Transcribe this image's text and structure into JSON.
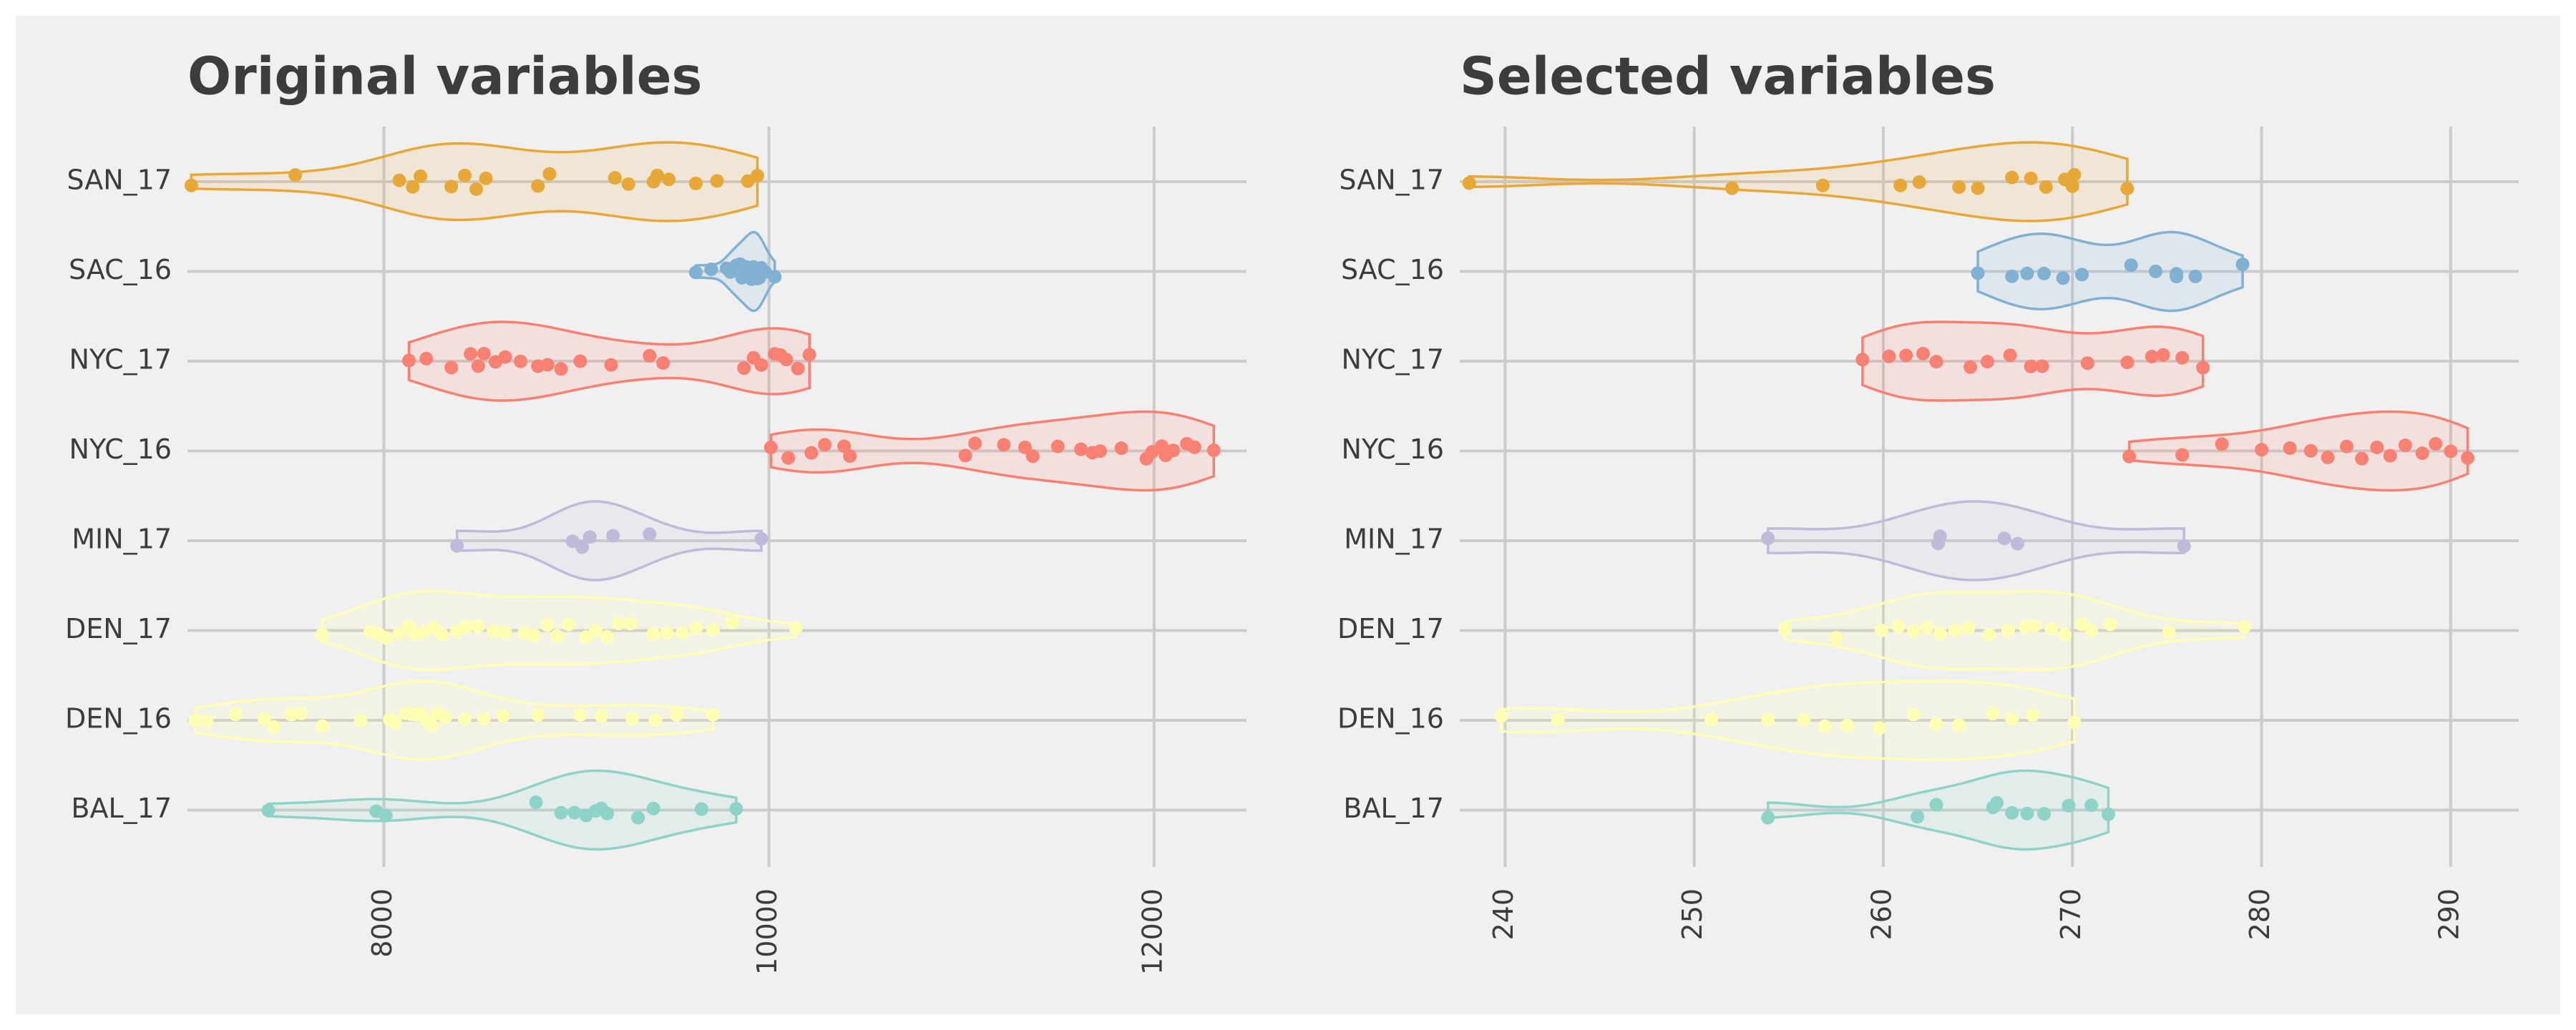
{
  "chart_data": [
    {
      "type": "violin",
      "title": "Original variables",
      "xlabel": "",
      "ylabel": "",
      "xlim": [
        6980,
        12480
      ],
      "xticks": [
        8000,
        10000,
        12000
      ],
      "grid": true,
      "categories": [
        "SAN_17",
        "SAC_16",
        "NYC_17",
        "NYC_16",
        "MIN_17",
        "DEN_17",
        "DEN_16",
        "BAL_17"
      ],
      "colors": [
        "#e8a838",
        "#80b1d3",
        "#fa8072",
        "#fa8072",
        "#bebada",
        "#ffffb3",
        "#ffffb3",
        "#8dd3c7"
      ],
      "series": [
        {
          "name": "SAN_17",
          "min": 7000,
          "max": 9940,
          "values": [
            7000,
            7540,
            8080,
            8150,
            8190,
            8350,
            8420,
            8480,
            8530,
            8800,
            8860,
            9200,
            9270,
            9400,
            9420,
            9480,
            9620,
            9730,
            9890,
            9940
          ]
        },
        {
          "name": "SAC_16",
          "min": 9620,
          "max": 10030,
          "values": [
            9620,
            9700,
            9780,
            9800,
            9830,
            9850,
            9860,
            9880,
            9900,
            9910,
            9920,
            9930,
            9940,
            9950,
            9960,
            9980,
            10030
          ]
        },
        {
          "name": "NYC_17",
          "min": 8130,
          "max": 10210,
          "values": [
            8130,
            8220,
            8350,
            8450,
            8490,
            8520,
            8580,
            8630,
            8710,
            8800,
            8850,
            8920,
            9020,
            9180,
            9380,
            9450,
            9870,
            9920,
            9960,
            10030,
            10060,
            10090,
            10150,
            10210
          ]
        },
        {
          "name": "NYC_16",
          "min": 10010,
          "max": 12310,
          "values": [
            10010,
            10100,
            10220,
            10290,
            10390,
            10420,
            11020,
            11070,
            11220,
            11330,
            11370,
            11500,
            11620,
            11680,
            11720,
            11830,
            11960,
            11990,
            12040,
            12060,
            12100,
            12170,
            12210,
            12310
          ]
        },
        {
          "name": "MIN_17",
          "min": 8380,
          "max": 9960,
          "values": [
            8380,
            8980,
            9030,
            9070,
            9190,
            9380,
            9960
          ]
        },
        {
          "name": "DEN_17",
          "min": 7680,
          "max": 10140,
          "values": [
            7680,
            7930,
            7970,
            8010,
            8080,
            8130,
            8160,
            8210,
            8260,
            8300,
            8380,
            8430,
            8490,
            8570,
            8630,
            8730,
            8780,
            8850,
            8900,
            8960,
            9050,
            9100,
            9160,
            9220,
            9280,
            9400,
            9470,
            9550,
            9620,
            9710,
            9810,
            10140
          ]
        },
        {
          "name": "DEN_16",
          "min": 7020,
          "max": 9710,
          "values": [
            7020,
            7080,
            7230,
            7380,
            7430,
            7520,
            7570,
            7680,
            7880,
            8030,
            8060,
            8110,
            8140,
            8170,
            8190,
            8220,
            8250,
            8280,
            8320,
            8420,
            8520,
            8620,
            8800,
            9020,
            9130,
            9290,
            9410,
            9520,
            9710
          ]
        },
        {
          "name": "BAL_17",
          "min": 7400,
          "max": 9830,
          "values": [
            7400,
            7960,
            8010,
            8790,
            8920,
            8990,
            9050,
            9100,
            9130,
            9160,
            9320,
            9400,
            9650,
            9830
          ]
        }
      ]
    },
    {
      "type": "violin",
      "title": "Selected variables",
      "xlabel": "",
      "ylabel": "",
      "xlim": [
        237.6,
        293.6
      ],
      "xticks": [
        240,
        250,
        260,
        270,
        280,
        290
      ],
      "grid": true,
      "categories": [
        "SAN_17",
        "SAC_16",
        "NYC_17",
        "NYC_16",
        "MIN_17",
        "DEN_17",
        "DEN_16",
        "BAL_17"
      ],
      "colors": [
        "#e8a838",
        "#80b1d3",
        "#fa8072",
        "#fa8072",
        "#bebada",
        "#ffffb3",
        "#ffffb3",
        "#8dd3c7"
      ],
      "series": [
        {
          "name": "SAN_17",
          "min": 238.1,
          "max": 272.9,
          "values": [
            238.1,
            252.0,
            256.8,
            260.9,
            261.9,
            264.0,
            265.0,
            266.8,
            267.8,
            268.6,
            269.6,
            270.0,
            270.1,
            272.9
          ]
        },
        {
          "name": "SAC_16",
          "min": 265.0,
          "max": 279.0,
          "values": [
            265.0,
            266.8,
            267.6,
            268.5,
            269.5,
            270.5,
            273.1,
            274.4,
            275.5,
            275.5,
            276.5,
            279.0
          ]
        },
        {
          "name": "NYC_17",
          "min": 258.9,
          "max": 276.9,
          "values": [
            258.9,
            260.3,
            261.2,
            262.1,
            262.8,
            264.6,
            265.5,
            266.7,
            267.8,
            268.4,
            270.8,
            272.9,
            274.2,
            274.8,
            275.8,
            276.9
          ]
        },
        {
          "name": "NYC_16",
          "min": 273.0,
          "max": 290.9,
          "values": [
            273.0,
            275.8,
            277.9,
            280.0,
            281.5,
            282.6,
            283.5,
            284.5,
            285.3,
            286.1,
            286.8,
            287.6,
            288.5,
            289.2,
            290.0,
            290.9
          ]
        },
        {
          "name": "MIN_17",
          "min": 253.9,
          "max": 275.9,
          "values": [
            253.9,
            262.9,
            263.0,
            266.4,
            267.1,
            275.9
          ]
        },
        {
          "name": "DEN_17",
          "min": 254.8,
          "max": 279.1,
          "values": [
            254.8,
            257.5,
            259.9,
            260.8,
            261.6,
            262.3,
            263.0,
            263.8,
            264.5,
            265.6,
            266.6,
            267.5,
            268.0,
            268.9,
            269.6,
            270.5,
            271.0,
            272.0,
            275.1,
            279.1
          ]
        },
        {
          "name": "DEN_16",
          "min": 239.8,
          "max": 270.1,
          "values": [
            239.8,
            242.8,
            250.9,
            253.9,
            255.8,
            256.9,
            258.1,
            259.8,
            261.6,
            262.8,
            264.0,
            265.8,
            266.8,
            267.9,
            270.1
          ]
        },
        {
          "name": "BAL_17",
          "min": 253.9,
          "max": 271.9,
          "values": [
            253.9,
            261.8,
            262.8,
            265.8,
            266.0,
            266.8,
            267.6,
            268.5,
            269.8,
            271.0,
            271.9
          ]
        }
      ]
    }
  ]
}
